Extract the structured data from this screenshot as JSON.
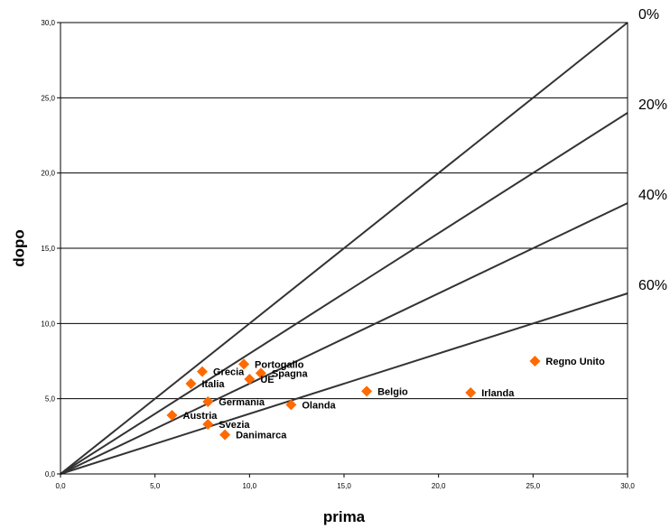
{
  "chart_data": {
    "type": "scatter",
    "title": "",
    "xlabel": "prima",
    "ylabel": "dopo",
    "xlim": [
      0,
      30
    ],
    "ylim": [
      0,
      30
    ],
    "x_ticks": [
      "0,0",
      "5,0",
      "10,0",
      "15,0",
      "20,0",
      "25,0",
      "30,0"
    ],
    "y_ticks": [
      "0,0",
      "5,0",
      "10,0",
      "15,0",
      "20,0",
      "25,0",
      "30,0"
    ],
    "grid": "horizontal",
    "marker": "diamond",
    "marker_color": "#FF6A00",
    "line_color": "#333333",
    "points": [
      {
        "label": "Regno Unito",
        "x": 25.1,
        "y": 7.5
      },
      {
        "label": "Irlanda",
        "x": 21.7,
        "y": 5.4
      },
      {
        "label": "Belgio",
        "x": 16.2,
        "y": 5.5
      },
      {
        "label": "Olanda",
        "x": 12.2,
        "y": 4.6
      },
      {
        "label": "Portogallo",
        "x": 9.7,
        "y": 7.3
      },
      {
        "label": "Spagna",
        "x": 10.6,
        "y": 6.7
      },
      {
        "label": "UE",
        "x": 10.0,
        "y": 6.3
      },
      {
        "label": "Grecia",
        "x": 7.5,
        "y": 6.8
      },
      {
        "label": "Italia",
        "x": 6.9,
        "y": 6.0
      },
      {
        "label": "Germania",
        "x": 7.8,
        "y": 4.8
      },
      {
        "label": "Austria",
        "x": 5.9,
        "y": 3.9
      },
      {
        "label": "Svezia",
        "x": 7.8,
        "y": 3.3
      },
      {
        "label": "Danimarca",
        "x": 8.7,
        "y": 2.6
      }
    ],
    "reference_lines": [
      {
        "label": "0%",
        "slope": 1.0
      },
      {
        "label": "20%",
        "slope": 0.8
      },
      {
        "label": "40%",
        "slope": 0.6
      },
      {
        "label": "60%",
        "slope": 0.4
      }
    ]
  }
}
